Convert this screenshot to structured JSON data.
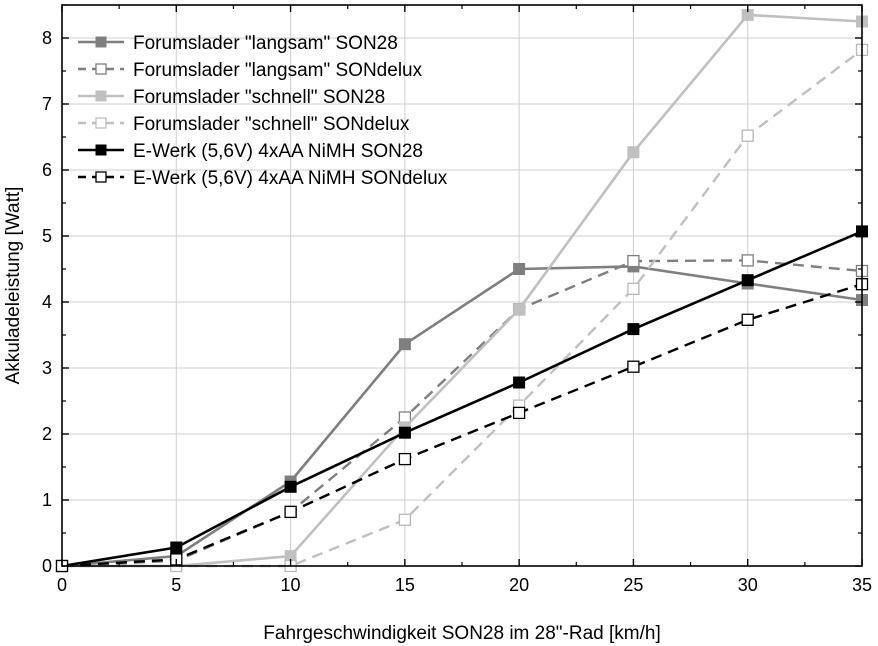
{
  "chart_data": {
    "type": "line",
    "title": "",
    "xlabel": "Fahrgeschwindigkeit SON28 im 28\"-Rad [km/h]",
    "ylabel": "Akkuladeleistung [Watt]",
    "xlim": [
      0,
      35
    ],
    "ylim": [
      0,
      8.5
    ],
    "xticks": [
      0,
      5,
      10,
      15,
      20,
      25,
      30,
      35
    ],
    "yticks": [
      0,
      1,
      2,
      3,
      4,
      5,
      6,
      7,
      8
    ],
    "grid": true,
    "legend_position": "top-left",
    "x": [
      0,
      5,
      10,
      15,
      20,
      25,
      30,
      35
    ],
    "series": [
      {
        "name": "Forumslader \"langsam\" SON28",
        "values": [
          0,
          0.15,
          1.28,
          3.36,
          4.5,
          4.54,
          4.28,
          4.03
        ],
        "color": "#7f7f7f",
        "dash": "solid",
        "marker": "filled-square"
      },
      {
        "name": "Forumslader \"langsam\" SONdelux",
        "values": [
          0,
          0.08,
          0.82,
          2.25,
          3.89,
          4.62,
          4.63,
          4.47
        ],
        "color": "#7f7f7f",
        "dash": "dashed",
        "marker": "open-square"
      },
      {
        "name": "Forumslader \"schnell\" SON28",
        "values": [
          0,
          0,
          0.15,
          2.1,
          3.89,
          6.27,
          8.35,
          8.25
        ],
        "color": "#c0c0c0",
        "dash": "solid",
        "marker": "filled-square"
      },
      {
        "name": "Forumslader \"schnell\" SONdelux",
        "values": [
          0,
          0,
          0,
          0.7,
          2.43,
          4.2,
          6.52,
          7.82
        ],
        "color": "#c0c0c0",
        "dash": "dashed",
        "marker": "open-square"
      },
      {
        "name": "E-Werk (5,6V) 4xAA NiMH SON28",
        "values": [
          0,
          0.28,
          1.2,
          2.02,
          2.78,
          3.59,
          4.33,
          5.07
        ],
        "color": "#000000",
        "dash": "solid",
        "marker": "filled-square"
      },
      {
        "name": "E-Werk (5,6V) 4xAA NiMH SONdelux",
        "values": [
          0,
          0.1,
          0.82,
          1.62,
          2.32,
          3.02,
          3.73,
          4.27
        ],
        "color": "#000000",
        "dash": "dashed",
        "marker": "open-square"
      }
    ]
  }
}
